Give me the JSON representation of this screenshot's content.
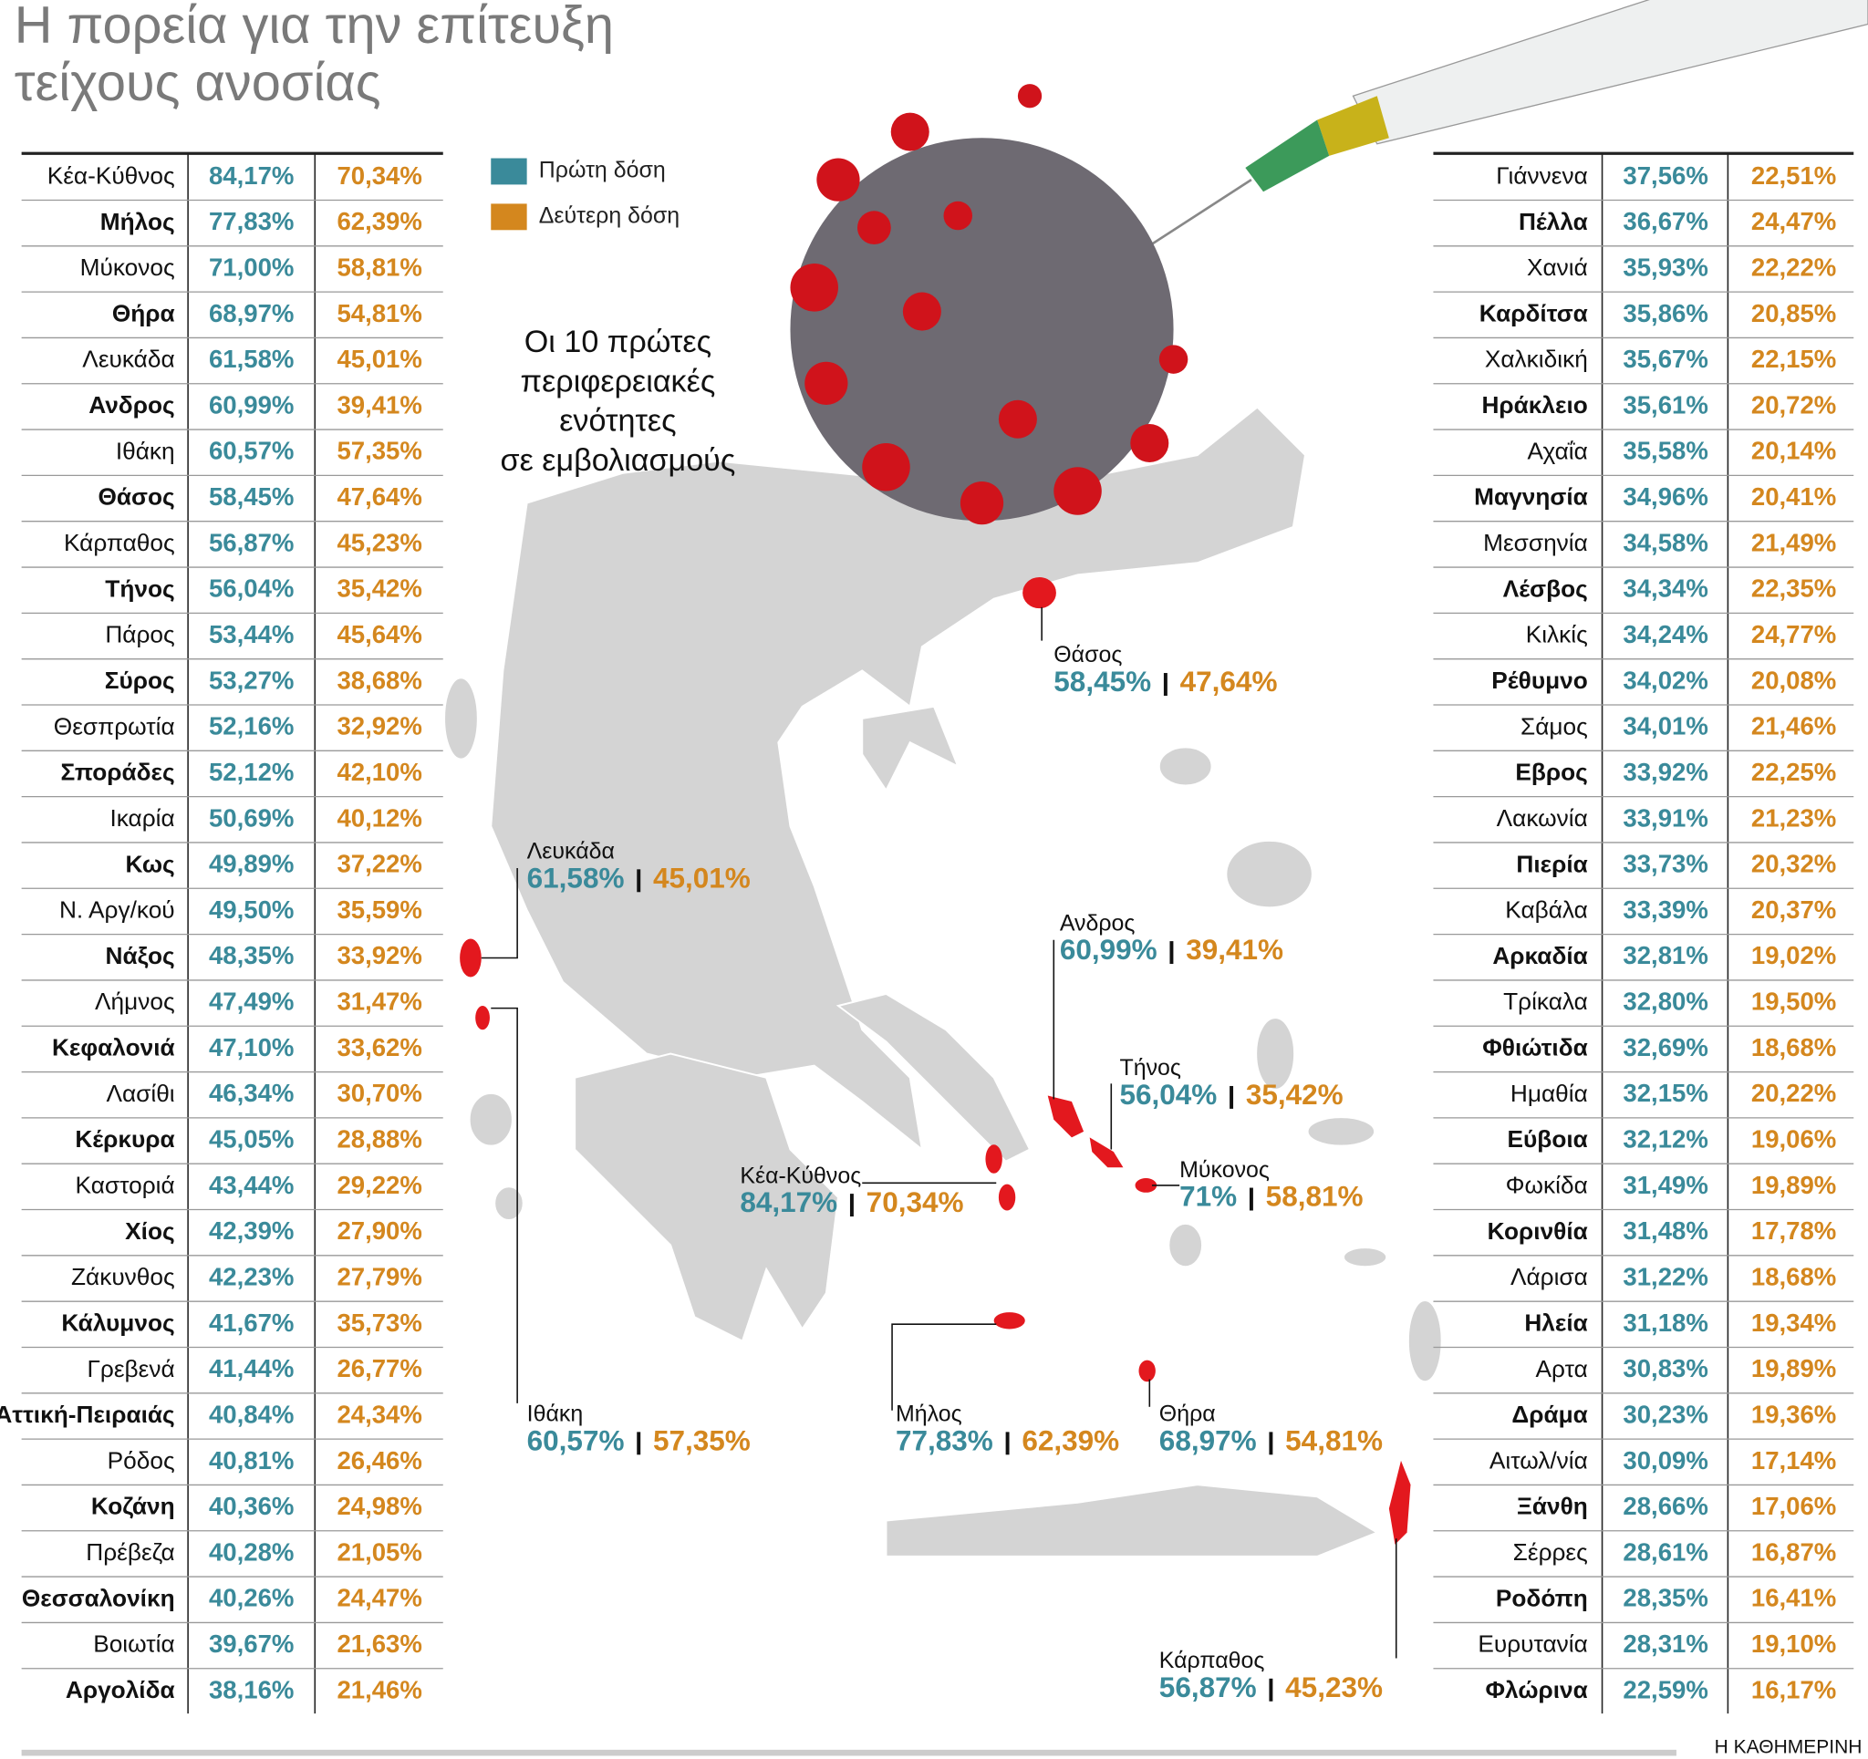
{
  "title": {
    "lines": [
      "Η πορεία για την επίτευξη",
      "τείχους ανοσίας"
    ]
  },
  "legend": [
    {
      "label": "Πρώτη δόση",
      "color": "#3a8a9a"
    },
    {
      "label": "Δεύτερη δόση",
      "color": "#d4871e"
    }
  ],
  "note": {
    "lines": [
      "Οι 10 πρώτες",
      "περιφερειακές",
      "ενότητες",
      "σε εμβολιασμούς"
    ]
  },
  "left_table": {
    "rows": [
      [
        "Κέα-Κύθνος",
        "84,17%",
        "70,34%"
      ],
      [
        "Μήλος",
        "77,83%",
        "62,39%"
      ],
      [
        "Μύκονος",
        "71,00%",
        "58,81%"
      ],
      [
        "Θήρα",
        "68,97%",
        "54,81%"
      ],
      [
        "Λευκάδα",
        "61,58%",
        "45,01%"
      ],
      [
        "Ανδρος",
        "60,99%",
        "39,41%"
      ],
      [
        "Ιθάκη",
        "60,57%",
        "57,35%"
      ],
      [
        "Θάσος",
        "58,45%",
        "47,64%"
      ],
      [
        "Κάρπαθος",
        "56,87%",
        "45,23%"
      ],
      [
        "Τήνος",
        "56,04%",
        "35,42%"
      ],
      [
        "Πάρος",
        "53,44%",
        "45,64%"
      ],
      [
        "Σύρος",
        "53,27%",
        "38,68%"
      ],
      [
        "Θεσπρωτία",
        "52,16%",
        "32,92%"
      ],
      [
        "Σποράδες",
        "52,12%",
        "42,10%"
      ],
      [
        "Ικαρία",
        "50,69%",
        "40,12%"
      ],
      [
        "Κως",
        "49,89%",
        "37,22%"
      ],
      [
        "Ν. Αργ/κού",
        "49,50%",
        "35,59%"
      ],
      [
        "Νάξος",
        "48,35%",
        "33,92%"
      ],
      [
        "Λήμνος",
        "47,49%",
        "31,47%"
      ],
      [
        "Κεφαλονιά",
        "47,10%",
        "33,62%"
      ],
      [
        "Λασίθι",
        "46,34%",
        "30,70%"
      ],
      [
        "Κέρκυρα",
        "45,05%",
        "28,88%"
      ],
      [
        "Καστοριά",
        "43,44%",
        "29,22%"
      ],
      [
        "Χίος",
        "42,39%",
        "27,90%"
      ],
      [
        "Ζάκυνθος",
        "42,23%",
        "27,79%"
      ],
      [
        "Κάλυμνος",
        "41,67%",
        "35,73%"
      ],
      [
        "Γρεβενά",
        "41,44%",
        "26,77%"
      ],
      [
        "Αττική-Πειραιάς",
        "40,84%",
        "24,34%"
      ],
      [
        "Ρόδος",
        "40,81%",
        "26,46%"
      ],
      [
        "Κοζάνη",
        "40,36%",
        "24,98%"
      ],
      [
        "Πρέβεζα",
        "40,28%",
        "21,05%"
      ],
      [
        "Θεσσαλονίκη",
        "40,26%",
        "24,47%"
      ],
      [
        "Βοιωτία",
        "39,67%",
        "21,63%"
      ],
      [
        "Αργολίδα",
        "38,16%",
        "21,46%"
      ]
    ]
  },
  "right_table": {
    "rows": [
      [
        "Γιάννενα",
        "37,56%",
        "22,51%"
      ],
      [
        "Πέλλα",
        "36,67%",
        "24,47%"
      ],
      [
        "Χανιά",
        "35,93%",
        "22,22%"
      ],
      [
        "Καρδίτσα",
        "35,86%",
        "20,85%"
      ],
      [
        "Χαλκιδική",
        "35,67%",
        "22,15%"
      ],
      [
        "Ηράκλειο",
        "35,61%",
        "20,72%"
      ],
      [
        "Αχαΐα",
        "35,58%",
        "20,14%"
      ],
      [
        "Μαγνησία",
        "34,96%",
        "20,41%"
      ],
      [
        "Μεσσηνία",
        "34,58%",
        "21,49%"
      ],
      [
        "Λέσβος",
        "34,34%",
        "22,35%"
      ],
      [
        "Κιλκίς",
        "34,24%",
        "24,77%"
      ],
      [
        "Ρέθυμνο",
        "34,02%",
        "20,08%"
      ],
      [
        "Σάμος",
        "34,01%",
        "21,46%"
      ],
      [
        "Εβρος",
        "33,92%",
        "22,25%"
      ],
      [
        "Λακωνία",
        "33,91%",
        "21,23%"
      ],
      [
        "Πιερία",
        "33,73%",
        "20,32%"
      ],
      [
        "Καβάλα",
        "33,39%",
        "20,37%"
      ],
      [
        "Αρκαδία",
        "32,81%",
        "19,02%"
      ],
      [
        "Τρίκαλα",
        "32,80%",
        "19,50%"
      ],
      [
        "Φθιώτιδα",
        "32,69%",
        "18,68%"
      ],
      [
        "Ημαθία",
        "32,15%",
        "20,22%"
      ],
      [
        "Εύβοια",
        "32,12%",
        "19,06%"
      ],
      [
        "Φωκίδα",
        "31,49%",
        "19,89%"
      ],
      [
        "Κορινθία",
        "31,48%",
        "17,78%"
      ],
      [
        "Λάρισα",
        "31,22%",
        "18,68%"
      ],
      [
        "Ηλεία",
        "31,18%",
        "19,34%"
      ],
      [
        "Αρτα",
        "30,83%",
        "19,89%"
      ],
      [
        "Δράμα",
        "30,23%",
        "19,36%"
      ],
      [
        "Αιτωλ/νία",
        "30,09%",
        "17,14%"
      ],
      [
        "Ξάνθη",
        "28,66%",
        "17,06%"
      ],
      [
        "Σέρρες",
        "28,61%",
        "16,87%"
      ],
      [
        "Ροδόπη",
        "28,35%",
        "16,41%"
      ],
      [
        "Ευρυτανία",
        "28,31%",
        "19,10%"
      ],
      [
        "Φλώρινα",
        "22,59%",
        "16,17%"
      ]
    ]
  },
  "map_labels": [
    {
      "name": "Θάσος",
      "first": "58,45%",
      "second": "47,64%"
    },
    {
      "name": "Λευκάδα",
      "first": "61,58%",
      "second": "45,01%"
    },
    {
      "name": "Ανδρος",
      "first": "60,99%",
      "second": "39,41%"
    },
    {
      "name": "Τήνος",
      "first": "56,04%",
      "second": "35,42%"
    },
    {
      "name": "Κέα-Κύθνος",
      "first": "84,17%",
      "second": "70,34%"
    },
    {
      "name": "Μύκονος",
      "first": "71%",
      "second": "58,81%"
    },
    {
      "name": "Ιθάκη",
      "first": "60,57%",
      "second": "57,35%"
    },
    {
      "name": "Μήλος",
      "first": "77,83%",
      "second": "62,39%"
    },
    {
      "name": "Θήρα",
      "first": "68,97%",
      "second": "54,81%"
    },
    {
      "name": "Κάρπαθος",
      "first": "56,87%",
      "second": "45,23%"
    }
  ],
  "source": "Η ΚΑΘΗΜΕΡΙΝΗ"
}
